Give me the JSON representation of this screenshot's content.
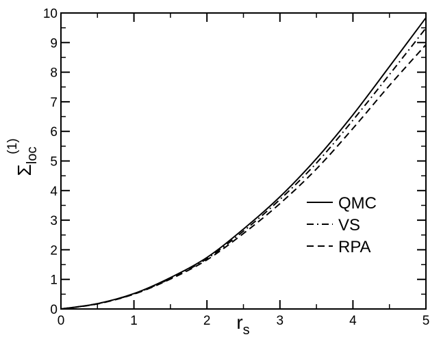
{
  "chart_data": {
    "type": "line",
    "xlabel": {
      "main": "r",
      "sub": "s"
    },
    "ylabel": {
      "main": "Σ",
      "sup": "(1)",
      "sub": "loc"
    },
    "xlim": [
      0,
      5
    ],
    "ylim": [
      0,
      10
    ],
    "x_ticks": [
      0,
      1,
      2,
      3,
      4,
      5
    ],
    "y_ticks": [
      0,
      1,
      2,
      3,
      4,
      5,
      6,
      7,
      8,
      9,
      10
    ],
    "grid": false,
    "legend_position": "lower-right",
    "series": [
      {
        "name": "QMC",
        "line_style": "solid",
        "x": [
          0,
          0.5,
          1,
          1.5,
          2,
          2.5,
          3,
          3.5,
          4,
          4.5,
          5
        ],
        "y": [
          0,
          0.18,
          0.52,
          1.06,
          1.74,
          2.7,
          3.79,
          5.08,
          6.56,
          8.19,
          9.84
        ]
      },
      {
        "name": "VS",
        "line_style": "dashdot",
        "x": [
          0,
          0.5,
          1,
          1.5,
          2,
          2.5,
          3,
          3.5,
          4,
          4.5,
          5
        ],
        "y": [
          0,
          0.18,
          0.51,
          1.03,
          1.7,
          2.63,
          3.7,
          4.93,
          6.38,
          7.92,
          9.49
        ]
      },
      {
        "name": "RPA",
        "line_style": "dashed",
        "x": [
          0,
          0.5,
          1,
          1.5,
          2,
          2.5,
          3,
          3.5,
          4,
          4.5,
          5
        ],
        "y": [
          0,
          0.17,
          0.5,
          1.01,
          1.66,
          2.55,
          3.56,
          4.73,
          6.1,
          7.55,
          8.93
        ]
      }
    ]
  }
}
